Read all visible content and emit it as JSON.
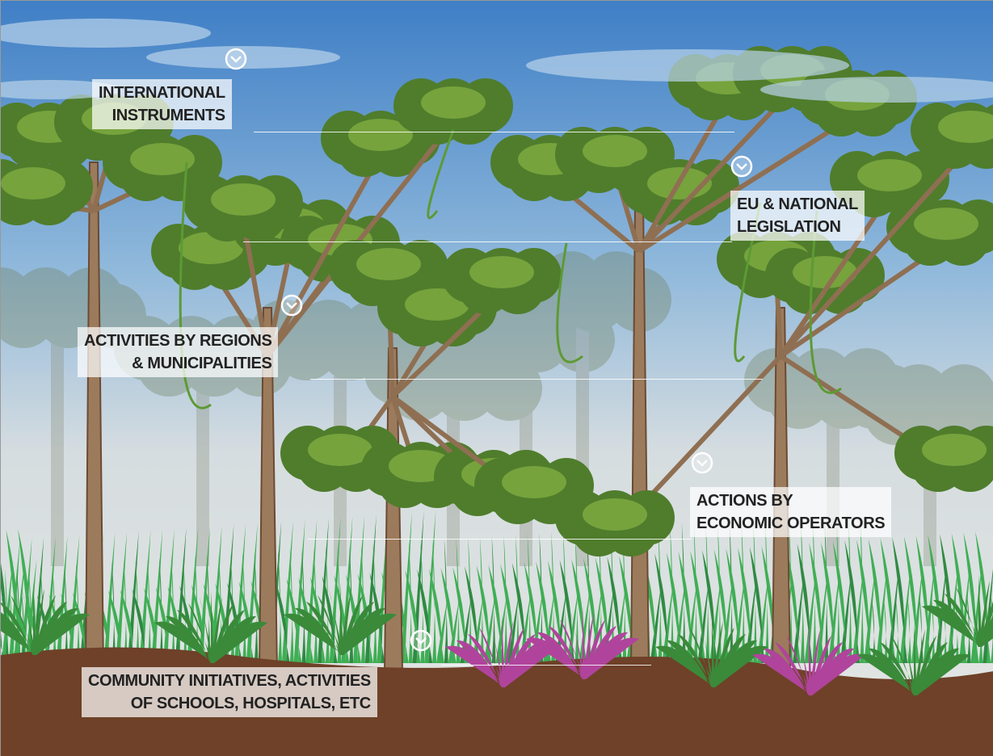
{
  "levels": [
    {
      "lines": [
        "INTERNATIONAL",
        "INSTRUMENTS"
      ]
    },
    {
      "lines": [
        "EU & NATIONAL",
        "LEGISLATION"
      ]
    },
    {
      "lines": [
        "ACTIVITIES BY REGIONS",
        "& MUNICIPALITIES"
      ]
    },
    {
      "lines": [
        "ACTIONS BY",
        "ECONOMIC OPERATORS"
      ]
    },
    {
      "lines": [
        "COMMUNITY INITIATIVES,  ACTIVITIES",
        "OF SCHOOLS,  HOSPITALS, ETC"
      ]
    }
  ]
}
